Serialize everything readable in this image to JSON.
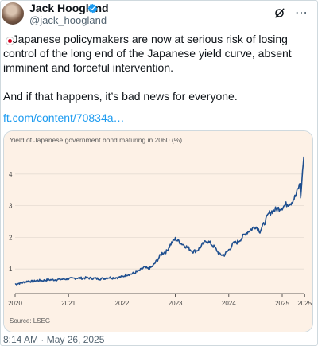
{
  "author": {
    "name": "Jack Hoogland",
    "handle": "@jack_hoogland"
  },
  "tweet": {
    "text": "   Japanese policymakers are now at serious risk of losing control of the long end of the Japanese yield curve, absent imminent and forceful intervention.\n\nAnd if that happens, it’s bad news for everyone.",
    "link": "ft.com/content/70834a…",
    "timestamp": "8:14 AM · May 26, 2025"
  },
  "colors": {
    "card_bg": "#fdf1e6",
    "line": "#1f4f8f",
    "link": "#1d9bf0",
    "verified": "#1d9bf0",
    "flag_red": "#d2001f"
  },
  "icons": [
    "japan-flag-icon",
    "verified-badge-icon",
    "grok-icon",
    "more-icon"
  ],
  "chart_data": {
    "type": "line",
    "title": "Yield of Japanese government bond maturing in 2060 (%)",
    "source": "Source: LSEG",
    "x_ticks": [
      "2020",
      "2021",
      "2022",
      "2023",
      "2024",
      "2025",
      "2025"
    ],
    "y_ticks": [
      "1",
      "2",
      "3",
      "4"
    ],
    "xlim": [
      "2020-01",
      "2025-05"
    ],
    "ylim": [
      0.25,
      4.8
    ],
    "grid": true,
    "series": [
      {
        "x": [
          "2020-01",
          "2020-02",
          "2020-03",
          "2020-04",
          "2020-05",
          "2020-06",
          "2020-07",
          "2020-08",
          "2020-09",
          "2020-10",
          "2020-11",
          "2020-12",
          "2021-01",
          "2021-02",
          "2021-03",
          "2021-04",
          "2021-05",
          "2021-06",
          "2021-07",
          "2021-08",
          "2021-09",
          "2021-10",
          "2021-11",
          "2021-12",
          "2022-01",
          "2022-02",
          "2022-03",
          "2022-04",
          "2022-05",
          "2022-06",
          "2022-07",
          "2022-08",
          "2022-09",
          "2022-10",
          "2022-11",
          "2022-12",
          "2023-01",
          "2023-02",
          "2023-03",
          "2023-04",
          "2023-05",
          "2023-06",
          "2023-07",
          "2023-08",
          "2023-09",
          "2023-10",
          "2023-11",
          "2023-12",
          "2024-01",
          "2024-02",
          "2024-03",
          "2024-04",
          "2024-05",
          "2024-06",
          "2024-07",
          "2024-08",
          "2024-09",
          "2024-10",
          "2024-11",
          "2024-12",
          "2025-01",
          "2025-02",
          "2025-03",
          "2025-04",
          "2025-05"
        ],
        "y": [
          0.52,
          0.55,
          0.58,
          0.62,
          0.6,
          0.64,
          0.63,
          0.65,
          0.66,
          0.66,
          0.67,
          0.68,
          0.69,
          0.7,
          0.72,
          0.71,
          0.72,
          0.71,
          0.7,
          0.69,
          0.7,
          0.73,
          0.72,
          0.73,
          0.75,
          0.82,
          0.84,
          0.88,
          0.95,
          1.05,
          1.0,
          1.1,
          1.3,
          1.5,
          1.55,
          1.8,
          1.95,
          1.85,
          1.75,
          1.65,
          1.55,
          1.6,
          1.75,
          1.9,
          1.8,
          1.65,
          1.45,
          1.45,
          1.6,
          1.8,
          1.85,
          2.0,
          2.15,
          2.25,
          2.35,
          2.2,
          2.45,
          2.75,
          2.85,
          2.9,
          2.95,
          3.05,
          3.1,
          3.3,
          3.7
        ]
      }
    ],
    "final_spike": [
      3.25,
      3.5,
      3.8,
      4.1,
      4.3,
      4.55
    ]
  }
}
